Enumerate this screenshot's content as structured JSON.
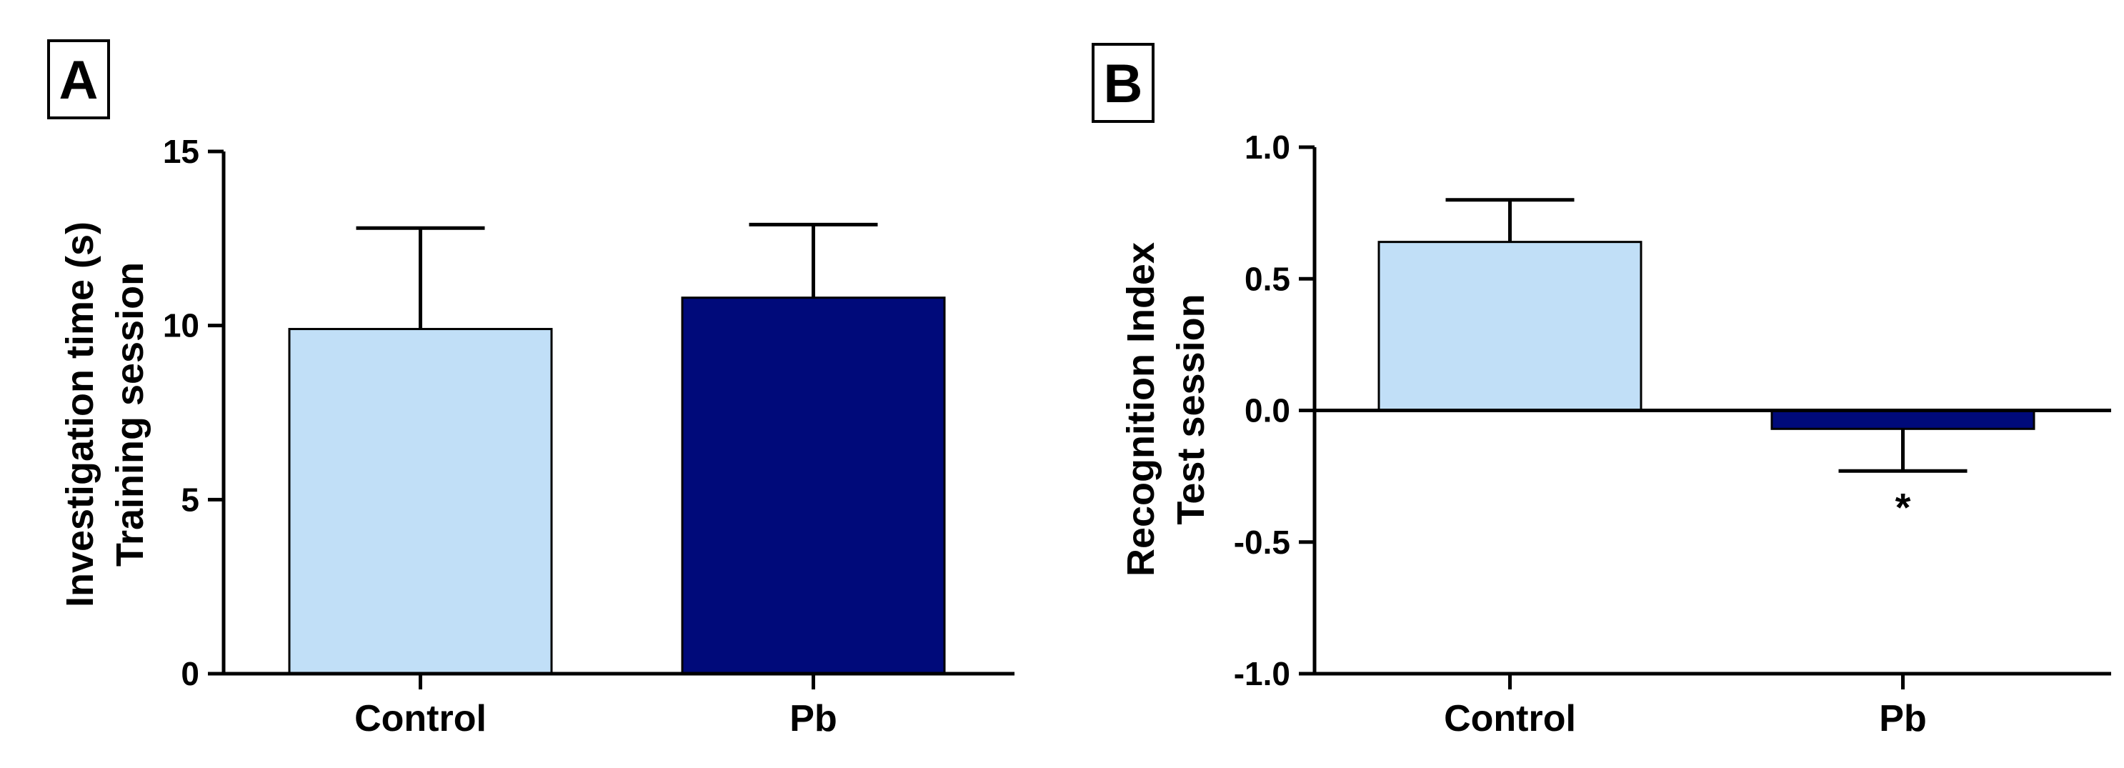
{
  "colors": {
    "control": "#c1dff7",
    "pb": "#000a7a",
    "axis": "#000000"
  },
  "chart_data": [
    {
      "type": "bar",
      "panel": "A",
      "ylabel_lines": [
        "Investigation time (s)",
        "Training session"
      ],
      "categories": [
        "Control",
        "Pb"
      ],
      "values": [
        9.9,
        10.8
      ],
      "errors": [
        2.9,
        2.1
      ],
      "error_direction": [
        "up",
        "up"
      ],
      "ylim": [
        0,
        15
      ],
      "yticks": [
        0,
        5,
        10,
        15
      ],
      "ytick_labels": [
        "0",
        "5",
        "10",
        "15"
      ],
      "colors": [
        "#c1dff7",
        "#000a7a"
      ],
      "annotations": []
    },
    {
      "type": "bar",
      "panel": "B",
      "ylabel_lines": [
        "Recognition Index",
        "Test session"
      ],
      "categories": [
        "Control",
        "Pb"
      ],
      "values": [
        0.64,
        -0.07
      ],
      "errors": [
        0.16,
        0.16
      ],
      "error_direction": [
        "up",
        "down"
      ],
      "ylim": [
        -1.0,
        1.0
      ],
      "yticks": [
        -1.0,
        -0.5,
        0.0,
        0.5,
        1.0
      ],
      "ytick_labels": [
        "-1.0",
        "-0.5",
        "0.0",
        "0.5",
        "1.0"
      ],
      "colors": [
        "#c1dff7",
        "#000a7a"
      ],
      "annotations": [
        {
          "category": "Pb",
          "text": "*"
        }
      ]
    }
  ]
}
